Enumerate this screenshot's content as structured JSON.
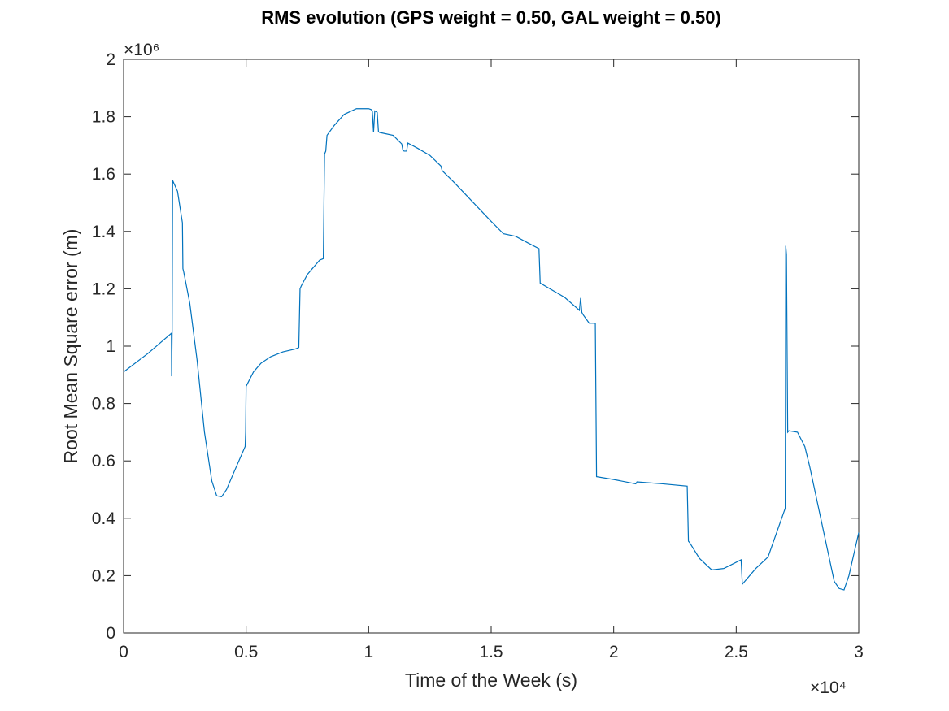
{
  "chart_data": {
    "type": "line",
    "title": "RMS evolution (GPS weight = 0.50, GAL weight = 0.50)",
    "xlabel": "Time of the Week (s)",
    "ylabel": "Root Mean Square error (m)",
    "x_exponent_label": "×10⁴",
    "y_exponent_label": "×10⁶",
    "xlim": [
      0,
      30000
    ],
    "ylim": [
      0,
      2000000
    ],
    "xticks": [
      0,
      5000,
      10000,
      15000,
      20000,
      25000,
      30000
    ],
    "xtick_labels": [
      "0",
      "0.5",
      "1",
      "1.5",
      "2",
      "2.5",
      "3"
    ],
    "yticks": [
      0,
      200000,
      400000,
      600000,
      800000,
      1000000,
      1200000,
      1400000,
      1600000,
      1800000,
      2000000
    ],
    "ytick_labels": [
      "0",
      "0.2",
      "0.4",
      "0.6",
      "0.8",
      "1",
      "1.2",
      "1.4",
      "1.6",
      "1.8",
      "2"
    ],
    "grid": false,
    "line_color": "#0072bd",
    "series": [
      {
        "x": [
          0,
          1000,
          1950,
          1960,
          1980,
          2000,
          2200,
          2400,
          2420,
          2450,
          2700,
          3000,
          3300,
          3600,
          3800,
          4000,
          4200,
          4500,
          4960,
          4980,
          5000,
          5300,
          5600,
          6000,
          6500,
          7000,
          7150,
          7200,
          7250,
          7500,
          8000,
          8150,
          8200,
          8250,
          8300,
          8600,
          9000,
          9500,
          10000,
          10100,
          10150,
          10200,
          10250,
          10300,
          10350,
          10400,
          10450,
          11000,
          11350,
          11400,
          11450,
          11550,
          11600,
          12000,
          12500,
          12950,
          13000,
          13500,
          14000,
          14500,
          15000,
          15500,
          16000,
          16500,
          16950,
          17000,
          18000,
          18600,
          18650,
          18700,
          18750,
          19000,
          19250,
          19300,
          20000,
          20900,
          20950,
          22000,
          23000,
          23050,
          23100,
          23500,
          24000,
          24500,
          25200,
          25250,
          25300,
          25800,
          26300,
          27000,
          27020,
          27050,
          27100,
          27150,
          27500,
          27800,
          28000,
          28500,
          29000,
          29200,
          29400,
          29600,
          30000
        ],
        "y": [
          910000,
          975000,
          1045000,
          895000,
          1045000,
          1578000,
          1540000,
          1430000,
          1270000,
          1260000,
          1150000,
          950000,
          700000,
          530000,
          478000,
          475000,
          500000,
          560000,
          650000,
          700000,
          860000,
          910000,
          940000,
          963000,
          980000,
          990000,
          995000,
          1200000,
          1210000,
          1250000,
          1300000,
          1305000,
          1670000,
          1680000,
          1735000,
          1770000,
          1808000,
          1828000,
          1828000,
          1825000,
          1820000,
          1745000,
          1820000,
          1818000,
          1815000,
          1748000,
          1745000,
          1735000,
          1705000,
          1682000,
          1680000,
          1680000,
          1708000,
          1690000,
          1665000,
          1628000,
          1612000,
          1570000,
          1525000,
          1480000,
          1435000,
          1392000,
          1383000,
          1360000,
          1340000,
          1220000,
          1170000,
          1125000,
          1168000,
          1118000,
          1110000,
          1080000,
          1080000,
          545000,
          535000,
          520000,
          527000,
          520000,
          512000,
          320000,
          315000,
          260000,
          220000,
          225000,
          255000,
          170000,
          175000,
          225000,
          265000,
          435000,
          1350000,
          1320000,
          700000,
          705000,
          700000,
          650000,
          580000,
          380000,
          180000,
          155000,
          150000,
          200000,
          350000
        ]
      }
    ]
  }
}
